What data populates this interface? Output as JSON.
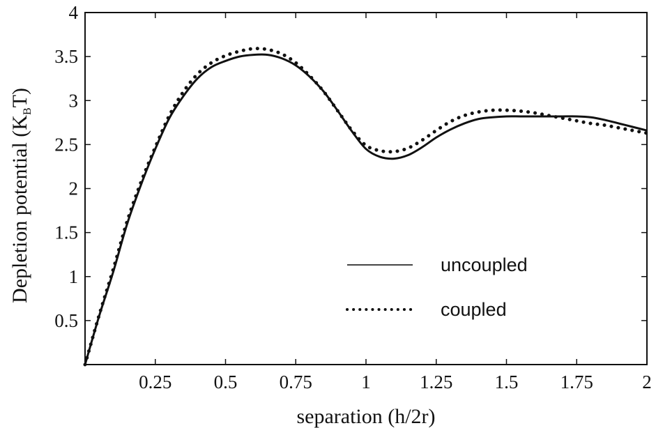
{
  "chart_data": {
    "type": "line",
    "xlabel": "separation (h/2r)",
    "ylabel_main": "Depletion potential (K",
    "ylabel_sub": "B",
    "ylabel_end": "T)",
    "xlim": [
      0,
      2
    ],
    "ylim": [
      0,
      4
    ],
    "x_ticks": [
      0.25,
      0.5,
      0.75,
      1,
      1.25,
      1.5,
      1.75,
      2
    ],
    "x_tick_labels": [
      "0.25",
      "0.5",
      "0.75",
      "1",
      "1.25",
      "1.5",
      "1.75",
      "2"
    ],
    "y_ticks": [
      0.5,
      1,
      1.5,
      2,
      2.5,
      3,
      3.5,
      4
    ],
    "y_tick_labels": [
      "0.5",
      "1",
      "1.5",
      "2",
      "2.5",
      "3",
      "3.5",
      "4"
    ],
    "legend_position": "center-right",
    "grid": false,
    "series": [
      {
        "name": "uncoupled",
        "style": "solid",
        "color": "#111111",
        "x": [
          0,
          0.05,
          0.1,
          0.15,
          0.2,
          0.25,
          0.3,
          0.35,
          0.4,
          0.45,
          0.5,
          0.55,
          0.6,
          0.65,
          0.7,
          0.75,
          0.8,
          0.85,
          0.9,
          0.95,
          1.0,
          1.05,
          1.1,
          1.15,
          1.2,
          1.25,
          1.3,
          1.35,
          1.4,
          1.45,
          1.5,
          1.55,
          1.6,
          1.65,
          1.7,
          1.75,
          1.8,
          1.85,
          1.9,
          1.95,
          2.0
        ],
        "y": [
          0.0,
          0.55,
          1.05,
          1.6,
          2.05,
          2.45,
          2.8,
          3.05,
          3.25,
          3.38,
          3.45,
          3.5,
          3.52,
          3.52,
          3.48,
          3.4,
          3.27,
          3.1,
          2.88,
          2.65,
          2.45,
          2.36,
          2.34,
          2.38,
          2.47,
          2.58,
          2.67,
          2.74,
          2.79,
          2.81,
          2.82,
          2.82,
          2.82,
          2.82,
          2.82,
          2.82,
          2.81,
          2.78,
          2.74,
          2.7,
          2.66
        ]
      },
      {
        "name": "coupled",
        "style": "dotted",
        "color": "#111111",
        "x": [
          0,
          0.05,
          0.1,
          0.15,
          0.2,
          0.25,
          0.3,
          0.35,
          0.4,
          0.45,
          0.5,
          0.55,
          0.6,
          0.65,
          0.7,
          0.75,
          0.8,
          0.85,
          0.9,
          0.95,
          1.0,
          1.05,
          1.1,
          1.15,
          1.2,
          1.25,
          1.3,
          1.35,
          1.4,
          1.45,
          1.5,
          1.55,
          1.6,
          1.65,
          1.7,
          1.75,
          1.8,
          1.85,
          1.9,
          1.95,
          2.0
        ],
        "y": [
          0.0,
          0.56,
          1.08,
          1.63,
          2.08,
          2.47,
          2.83,
          3.1,
          3.3,
          3.43,
          3.51,
          3.56,
          3.59,
          3.58,
          3.53,
          3.43,
          3.28,
          3.1,
          2.88,
          2.66,
          2.49,
          2.43,
          2.42,
          2.46,
          2.55,
          2.66,
          2.76,
          2.83,
          2.87,
          2.89,
          2.89,
          2.88,
          2.86,
          2.83,
          2.8,
          2.77,
          2.74,
          2.72,
          2.69,
          2.66,
          2.63
        ]
      }
    ]
  }
}
